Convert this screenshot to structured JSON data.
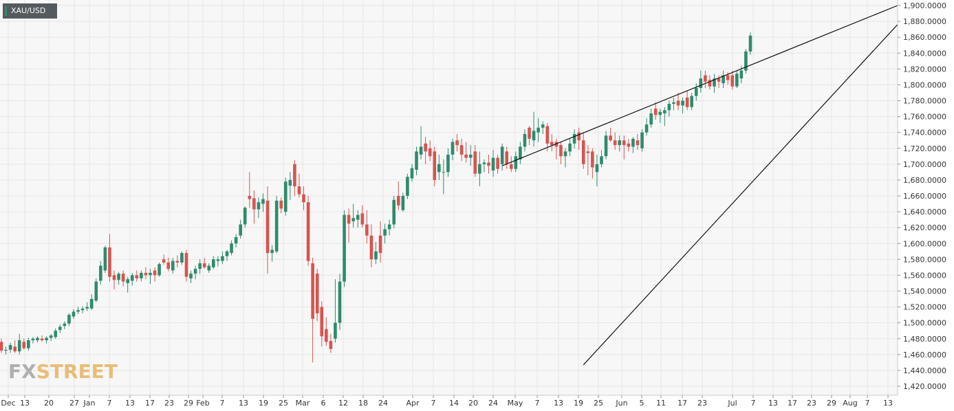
{
  "symbol": "XAU/USD",
  "watermark": {
    "prefix": "FX",
    "suffix": "STREET"
  },
  "colors": {
    "up": "#2e8b6d",
    "down": "#d9534f",
    "grid": "#e6e6e6",
    "plot_bg": "#f7f7f7",
    "line": "#111111",
    "watermark": "#e8b76a",
    "watermark_dark": "#a8a8a8"
  },
  "chart_data": {
    "type": "candlestick",
    "ylim": [
      1410,
      1900
    ],
    "y_ticks": [
      "1,420.0000",
      "1,440.0000",
      "1,460.0000",
      "1,480.0000",
      "1,500.0000",
      "1,520.0000",
      "1,540.0000",
      "1,560.0000",
      "1,580.0000",
      "1,600.0000",
      "1,620.0000",
      "1,640.0000",
      "1,660.0000",
      "1,680.0000",
      "1,700.0000",
      "1,720.0000",
      "1,740.0000",
      "1,760.0000",
      "1,780.0000",
      "1,800.0000",
      "1,820.0000",
      "1,840.0000",
      "1,860.0000",
      "1,880.0000",
      "1,900.0000"
    ],
    "x_ticks": [
      "Dec",
      "13",
      "20",
      "27",
      "Jan",
      "7",
      "13",
      "17",
      "23",
      "29",
      "Feb",
      "7",
      "13",
      "19",
      "25",
      "Mar",
      "6",
      "12",
      "18",
      "24",
      "Apr",
      "7",
      "14",
      "20",
      "24",
      "May",
      "7",
      "13",
      "19",
      "25",
      "Jun",
      "5",
      "11",
      "17",
      "23",
      "Jul",
      "7",
      "13",
      "17",
      "23",
      "29",
      "Aug",
      "7",
      "13"
    ],
    "candles": [
      {
        "o": 1476,
        "h": 1480,
        "l": 1462,
        "c": 1465
      },
      {
        "o": 1465,
        "h": 1470,
        "l": 1460,
        "c": 1466
      },
      {
        "o": 1466,
        "h": 1475,
        "l": 1462,
        "c": 1472
      },
      {
        "o": 1470,
        "h": 1478,
        "l": 1462,
        "c": 1464
      },
      {
        "o": 1464,
        "h": 1486,
        "l": 1460,
        "c": 1478
      },
      {
        "o": 1476,
        "h": 1480,
        "l": 1466,
        "c": 1468
      },
      {
        "o": 1468,
        "h": 1481,
        "l": 1465,
        "c": 1478
      },
      {
        "o": 1478,
        "h": 1482,
        "l": 1474,
        "c": 1480
      },
      {
        "o": 1478,
        "h": 1483,
        "l": 1475,
        "c": 1481
      },
      {
        "o": 1480,
        "h": 1484,
        "l": 1476,
        "c": 1478
      },
      {
        "o": 1478,
        "h": 1483,
        "l": 1474,
        "c": 1481
      },
      {
        "o": 1481,
        "h": 1486,
        "l": 1477,
        "c": 1484
      },
      {
        "o": 1482,
        "h": 1493,
        "l": 1480,
        "c": 1490
      },
      {
        "o": 1491,
        "h": 1498,
        "l": 1487,
        "c": 1495
      },
      {
        "o": 1496,
        "h": 1502,
        "l": 1492,
        "c": 1499
      },
      {
        "o": 1499,
        "h": 1512,
        "l": 1496,
        "c": 1510
      },
      {
        "o": 1508,
        "h": 1517,
        "l": 1505,
        "c": 1514
      },
      {
        "o": 1514,
        "h": 1520,
        "l": 1511,
        "c": 1516
      },
      {
        "o": 1516,
        "h": 1521,
        "l": 1512,
        "c": 1518
      },
      {
        "o": 1518,
        "h": 1526,
        "l": 1515,
        "c": 1520
      },
      {
        "o": 1518,
        "h": 1536,
        "l": 1516,
        "c": 1530
      },
      {
        "o": 1528,
        "h": 1556,
        "l": 1526,
        "c": 1552
      },
      {
        "o": 1553,
        "h": 1578,
        "l": 1548,
        "c": 1572
      },
      {
        "o": 1566,
        "h": 1597,
        "l": 1563,
        "c": 1595
      },
      {
        "o": 1595,
        "h": 1612,
        "l": 1552,
        "c": 1558
      },
      {
        "o": 1560,
        "h": 1566,
        "l": 1542,
        "c": 1554
      },
      {
        "o": 1554,
        "h": 1564,
        "l": 1548,
        "c": 1562
      },
      {
        "o": 1562,
        "h": 1566,
        "l": 1546,
        "c": 1552
      },
      {
        "o": 1550,
        "h": 1558,
        "l": 1538,
        "c": 1555
      },
      {
        "o": 1553,
        "h": 1563,
        "l": 1547,
        "c": 1560
      },
      {
        "o": 1560,
        "h": 1566,
        "l": 1552,
        "c": 1556
      },
      {
        "o": 1556,
        "h": 1566,
        "l": 1552,
        "c": 1563
      },
      {
        "o": 1563,
        "h": 1570,
        "l": 1555,
        "c": 1560
      },
      {
        "o": 1560,
        "h": 1568,
        "l": 1549,
        "c": 1563
      },
      {
        "o": 1566,
        "h": 1570,
        "l": 1552,
        "c": 1560
      },
      {
        "o": 1560,
        "h": 1576,
        "l": 1558,
        "c": 1574
      },
      {
        "o": 1580,
        "h": 1586,
        "l": 1573,
        "c": 1576
      },
      {
        "o": 1576,
        "h": 1582,
        "l": 1565,
        "c": 1568
      },
      {
        "o": 1566,
        "h": 1582,
        "l": 1562,
        "c": 1578
      },
      {
        "o": 1578,
        "h": 1585,
        "l": 1570,
        "c": 1576
      },
      {
        "o": 1576,
        "h": 1590,
        "l": 1573,
        "c": 1588
      },
      {
        "o": 1588,
        "h": 1592,
        "l": 1552,
        "c": 1558
      },
      {
        "o": 1556,
        "h": 1566,
        "l": 1550,
        "c": 1562
      },
      {
        "o": 1562,
        "h": 1572,
        "l": 1555,
        "c": 1568
      },
      {
        "o": 1568,
        "h": 1580,
        "l": 1562,
        "c": 1575
      },
      {
        "o": 1575,
        "h": 1582,
        "l": 1568,
        "c": 1570
      },
      {
        "o": 1566,
        "h": 1575,
        "l": 1563,
        "c": 1572
      },
      {
        "o": 1570,
        "h": 1584,
        "l": 1568,
        "c": 1580
      },
      {
        "o": 1578,
        "h": 1584,
        "l": 1571,
        "c": 1580
      },
      {
        "o": 1578,
        "h": 1590,
        "l": 1574,
        "c": 1584
      },
      {
        "o": 1584,
        "h": 1592,
        "l": 1578,
        "c": 1590
      },
      {
        "o": 1588,
        "h": 1604,
        "l": 1585,
        "c": 1600
      },
      {
        "o": 1600,
        "h": 1612,
        "l": 1595,
        "c": 1608
      },
      {
        "o": 1610,
        "h": 1630,
        "l": 1606,
        "c": 1624
      },
      {
        "o": 1624,
        "h": 1647,
        "l": 1620,
        "c": 1645
      },
      {
        "o": 1660,
        "h": 1690,
        "l": 1645,
        "c": 1656
      },
      {
        "o": 1657,
        "h": 1667,
        "l": 1625,
        "c": 1643
      },
      {
        "o": 1643,
        "h": 1658,
        "l": 1632,
        "c": 1652
      },
      {
        "o": 1650,
        "h": 1663,
        "l": 1640,
        "c": 1656
      },
      {
        "o": 1654,
        "h": 1672,
        "l": 1562,
        "c": 1588
      },
      {
        "o": 1588,
        "h": 1598,
        "l": 1577,
        "c": 1592
      },
      {
        "o": 1590,
        "h": 1660,
        "l": 1588,
        "c": 1654
      },
      {
        "o": 1654,
        "h": 1658,
        "l": 1638,
        "c": 1644
      },
      {
        "o": 1640,
        "h": 1683,
        "l": 1635,
        "c": 1678
      },
      {
        "o": 1673,
        "h": 1690,
        "l": 1655,
        "c": 1680
      },
      {
        "o": 1700,
        "h": 1705,
        "l": 1660,
        "c": 1672
      },
      {
        "o": 1672,
        "h": 1688,
        "l": 1658,
        "c": 1662
      },
      {
        "o": 1662,
        "h": 1672,
        "l": 1642,
        "c": 1652
      },
      {
        "o": 1652,
        "h": 1660,
        "l": 1572,
        "c": 1578
      },
      {
        "o": 1575,
        "h": 1582,
        "l": 1450,
        "c": 1505
      },
      {
        "o": 1562,
        "h": 1568,
        "l": 1502,
        "c": 1512
      },
      {
        "o": 1520,
        "h": 1527,
        "l": 1470,
        "c": 1483
      },
      {
        "o": 1492,
        "h": 1507,
        "l": 1471,
        "c": 1476
      },
      {
        "o": 1477,
        "h": 1486,
        "l": 1462,
        "c": 1467
      },
      {
        "o": 1480,
        "h": 1555,
        "l": 1475,
        "c": 1500
      },
      {
        "o": 1500,
        "h": 1562,
        "l": 1491,
        "c": 1552
      },
      {
        "o": 1552,
        "h": 1642,
        "l": 1545,
        "c": 1636
      },
      {
        "o": 1636,
        "h": 1644,
        "l": 1601,
        "c": 1625
      },
      {
        "o": 1628,
        "h": 1650,
        "l": 1620,
        "c": 1632
      },
      {
        "o": 1630,
        "h": 1642,
        "l": 1620,
        "c": 1636
      },
      {
        "o": 1638,
        "h": 1648,
        "l": 1620,
        "c": 1624
      },
      {
        "o": 1624,
        "h": 1642,
        "l": 1600,
        "c": 1610
      },
      {
        "o": 1610,
        "h": 1624,
        "l": 1570,
        "c": 1580
      },
      {
        "o": 1580,
        "h": 1602,
        "l": 1574,
        "c": 1590
      },
      {
        "o": 1610,
        "h": 1628,
        "l": 1576,
        "c": 1588
      },
      {
        "o": 1610,
        "h": 1625,
        "l": 1600,
        "c": 1618
      },
      {
        "o": 1618,
        "h": 1630,
        "l": 1610,
        "c": 1624
      },
      {
        "o": 1624,
        "h": 1660,
        "l": 1619,
        "c": 1655
      },
      {
        "o": 1660,
        "h": 1678,
        "l": 1642,
        "c": 1648
      },
      {
        "o": 1642,
        "h": 1664,
        "l": 1640,
        "c": 1660
      },
      {
        "o": 1660,
        "h": 1688,
        "l": 1656,
        "c": 1684
      },
      {
        "o": 1682,
        "h": 1700,
        "l": 1678,
        "c": 1695
      },
      {
        "o": 1693,
        "h": 1722,
        "l": 1686,
        "c": 1716
      },
      {
        "o": 1712,
        "h": 1748,
        "l": 1706,
        "c": 1722
      },
      {
        "o": 1726,
        "h": 1734,
        "l": 1700,
        "c": 1716
      },
      {
        "o": 1720,
        "h": 1730,
        "l": 1704,
        "c": 1710
      },
      {
        "o": 1716,
        "h": 1722,
        "l": 1672,
        "c": 1680
      },
      {
        "o": 1690,
        "h": 1712,
        "l": 1680,
        "c": 1700
      },
      {
        "o": 1690,
        "h": 1706,
        "l": 1662,
        "c": 1690
      },
      {
        "o": 1690,
        "h": 1720,
        "l": 1684,
        "c": 1712
      },
      {
        "o": 1712,
        "h": 1732,
        "l": 1705,
        "c": 1728
      },
      {
        "o": 1730,
        "h": 1738,
        "l": 1716,
        "c": 1724
      },
      {
        "o": 1724,
        "h": 1732,
        "l": 1704,
        "c": 1712
      },
      {
        "o": 1712,
        "h": 1728,
        "l": 1702,
        "c": 1708
      },
      {
        "o": 1708,
        "h": 1724,
        "l": 1698,
        "c": 1712
      },
      {
        "o": 1716,
        "h": 1724,
        "l": 1684,
        "c": 1688
      },
      {
        "o": 1688,
        "h": 1716,
        "l": 1672,
        "c": 1700
      },
      {
        "o": 1700,
        "h": 1706,
        "l": 1690,
        "c": 1702
      },
      {
        "o": 1702,
        "h": 1712,
        "l": 1688,
        "c": 1698
      },
      {
        "o": 1692,
        "h": 1718,
        "l": 1684,
        "c": 1708
      },
      {
        "o": 1708,
        "h": 1712,
        "l": 1688,
        "c": 1694
      },
      {
        "o": 1700,
        "h": 1726,
        "l": 1692,
        "c": 1722
      },
      {
        "o": 1716,
        "h": 1722,
        "l": 1694,
        "c": 1700
      },
      {
        "o": 1700,
        "h": 1710,
        "l": 1690,
        "c": 1694
      },
      {
        "o": 1694,
        "h": 1716,
        "l": 1690,
        "c": 1710
      },
      {
        "o": 1706,
        "h": 1728,
        "l": 1700,
        "c": 1722
      },
      {
        "o": 1722,
        "h": 1744,
        "l": 1716,
        "c": 1738
      },
      {
        "o": 1746,
        "h": 1748,
        "l": 1724,
        "c": 1732
      },
      {
        "o": 1730,
        "h": 1766,
        "l": 1722,
        "c": 1742
      },
      {
        "o": 1740,
        "h": 1758,
        "l": 1728,
        "c": 1746
      },
      {
        "o": 1746,
        "h": 1754,
        "l": 1738,
        "c": 1750
      },
      {
        "o": 1748,
        "h": 1752,
        "l": 1716,
        "c": 1726
      },
      {
        "o": 1728,
        "h": 1738,
        "l": 1716,
        "c": 1724
      },
      {
        "o": 1728,
        "h": 1732,
        "l": 1706,
        "c": 1722
      },
      {
        "o": 1724,
        "h": 1728,
        "l": 1700,
        "c": 1710
      },
      {
        "o": 1710,
        "h": 1720,
        "l": 1696,
        "c": 1716
      },
      {
        "o": 1716,
        "h": 1732,
        "l": 1710,
        "c": 1726
      },
      {
        "o": 1726,
        "h": 1744,
        "l": 1720,
        "c": 1738
      },
      {
        "o": 1740,
        "h": 1746,
        "l": 1718,
        "c": 1730
      },
      {
        "o": 1730,
        "h": 1740,
        "l": 1694,
        "c": 1700
      },
      {
        "o": 1716,
        "h": 1724,
        "l": 1686,
        "c": 1714
      },
      {
        "o": 1716,
        "h": 1720,
        "l": 1682,
        "c": 1696
      },
      {
        "o": 1690,
        "h": 1712,
        "l": 1672,
        "c": 1700
      },
      {
        "o": 1700,
        "h": 1718,
        "l": 1696,
        "c": 1710
      },
      {
        "o": 1710,
        "h": 1742,
        "l": 1706,
        "c": 1736
      },
      {
        "o": 1736,
        "h": 1746,
        "l": 1728,
        "c": 1730
      },
      {
        "o": 1730,
        "h": 1740,
        "l": 1718,
        "c": 1724
      },
      {
        "o": 1724,
        "h": 1736,
        "l": 1716,
        "c": 1730
      },
      {
        "o": 1730,
        "h": 1736,
        "l": 1706,
        "c": 1724
      },
      {
        "o": 1726,
        "h": 1732,
        "l": 1716,
        "c": 1722
      },
      {
        "o": 1722,
        "h": 1734,
        "l": 1714,
        "c": 1732
      },
      {
        "o": 1730,
        "h": 1738,
        "l": 1718,
        "c": 1724
      },
      {
        "o": 1720,
        "h": 1744,
        "l": 1716,
        "c": 1740
      },
      {
        "o": 1740,
        "h": 1758,
        "l": 1736,
        "c": 1750
      },
      {
        "o": 1750,
        "h": 1770,
        "l": 1746,
        "c": 1764
      },
      {
        "o": 1770,
        "h": 1778,
        "l": 1756,
        "c": 1762
      },
      {
        "o": 1762,
        "h": 1770,
        "l": 1752,
        "c": 1766
      },
      {
        "o": 1764,
        "h": 1772,
        "l": 1748,
        "c": 1768
      },
      {
        "o": 1768,
        "h": 1780,
        "l": 1760,
        "c": 1776
      },
      {
        "o": 1776,
        "h": 1784,
        "l": 1768,
        "c": 1778
      },
      {
        "o": 1780,
        "h": 1790,
        "l": 1768,
        "c": 1774
      },
      {
        "o": 1774,
        "h": 1784,
        "l": 1764,
        "c": 1780
      },
      {
        "o": 1784,
        "h": 1792,
        "l": 1768,
        "c": 1772
      },
      {
        "o": 1772,
        "h": 1790,
        "l": 1768,
        "c": 1786
      },
      {
        "o": 1786,
        "h": 1802,
        "l": 1780,
        "c": 1796
      },
      {
        "o": 1796,
        "h": 1818,
        "l": 1790,
        "c": 1808
      },
      {
        "o": 1812,
        "h": 1818,
        "l": 1796,
        "c": 1804
      },
      {
        "o": 1806,
        "h": 1812,
        "l": 1794,
        "c": 1798
      },
      {
        "o": 1798,
        "h": 1814,
        "l": 1790,
        "c": 1808
      },
      {
        "o": 1808,
        "h": 1812,
        "l": 1796,
        "c": 1804
      },
      {
        "o": 1802,
        "h": 1818,
        "l": 1796,
        "c": 1812
      },
      {
        "o": 1812,
        "h": 1816,
        "l": 1800,
        "c": 1806
      },
      {
        "o": 1812,
        "h": 1818,
        "l": 1794,
        "c": 1798
      },
      {
        "o": 1798,
        "h": 1818,
        "l": 1796,
        "c": 1814
      },
      {
        "o": 1808,
        "h": 1824,
        "l": 1802,
        "c": 1818
      },
      {
        "o": 1818,
        "h": 1845,
        "l": 1814,
        "c": 1842
      },
      {
        "o": 1842,
        "h": 1866,
        "l": 1838,
        "c": 1862
      }
    ],
    "annotations": [
      {
        "type": "trendline",
        "label": "",
        "from": {
          "x": 111,
          "y": 1698
        },
        "to": {
          "x": 210,
          "y": 1900
        }
      },
      {
        "type": "trendline",
        "label": "",
        "from": {
          "x": 129,
          "y": 1447
        },
        "to": {
          "x": 210,
          "y": 1876
        }
      }
    ]
  }
}
